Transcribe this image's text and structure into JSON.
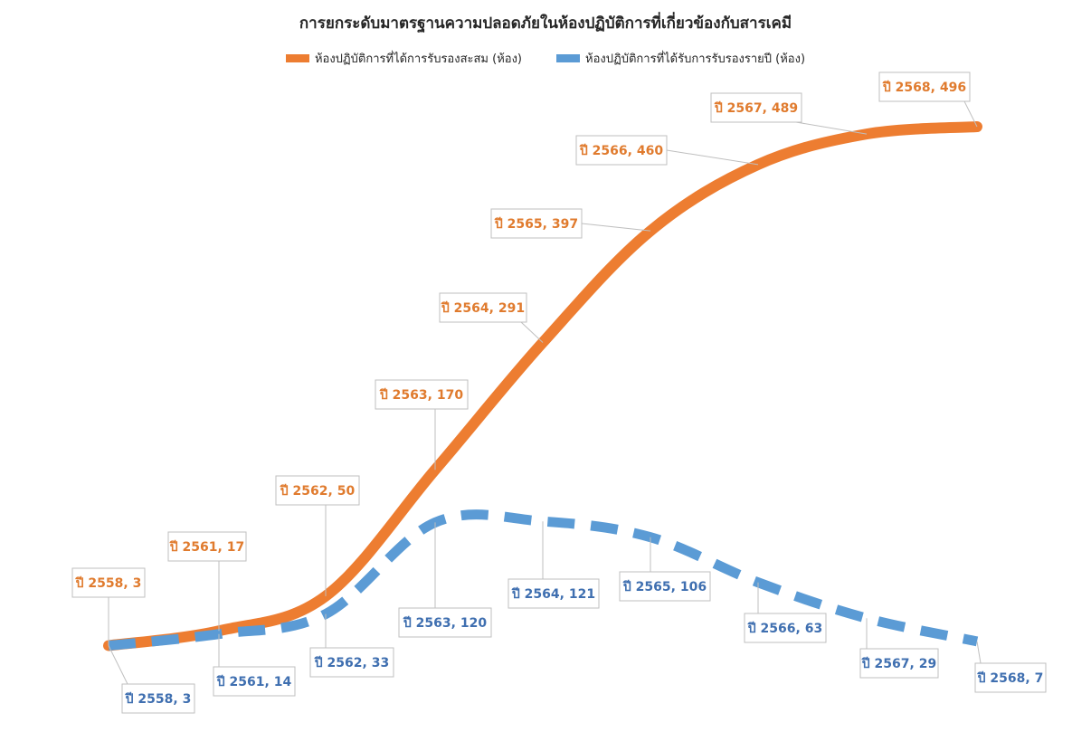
{
  "chart_data": {
    "type": "line",
    "title": "การยกระดับมาตรฐานความปลอดภัยในห้องปฏิบัติการที่เกี่ยวข้องกับสารเคมี",
    "xlabel": "",
    "ylabel": "",
    "x": [
      2558,
      2561,
      2562,
      2563,
      2564,
      2565,
      2566,
      2567,
      2568
    ],
    "grid": false,
    "legend_position": "top",
    "series": [
      {
        "name": "ห้องปฏิบัติการที่ได้การรับรองสะสม (ห้อง)",
        "color": "#ED7D31",
        "style": "solid",
        "values": [
          3,
          17,
          50,
          170,
          291,
          397,
          460,
          489,
          496
        ],
        "labels": [
          "ปี 2558, 3",
          "ปี 2561, 17",
          "ปี 2562, 50",
          "ปี 2563, 170",
          "ปี 2564, 291",
          "ปี 2565, 397",
          "ปี 2566, 460",
          "ปี 2567, 489",
          "ปี 2568, 496"
        ]
      },
      {
        "name": "ห้องปฏิบัติการที่ได้รับการรับรองรายปี (ห้อง)",
        "color": "#5B9BD5",
        "style": "dashed",
        "values": [
          3,
          14,
          33,
          120,
          121,
          106,
          63,
          29,
          7
        ],
        "labels": [
          "ปี 2558, 3",
          "ปี 2561, 14",
          "ปี 2562, 33",
          "ปี 2563, 120",
          "ปี 2564, 121",
          "ปี 2565, 106",
          "ปี 2566, 63",
          "ปี 2567, 29",
          "ปี 2568, 7"
        ]
      }
    ]
  },
  "label_colors": {
    "orange": "#E07B2E",
    "blue": "#3F6FB0"
  }
}
